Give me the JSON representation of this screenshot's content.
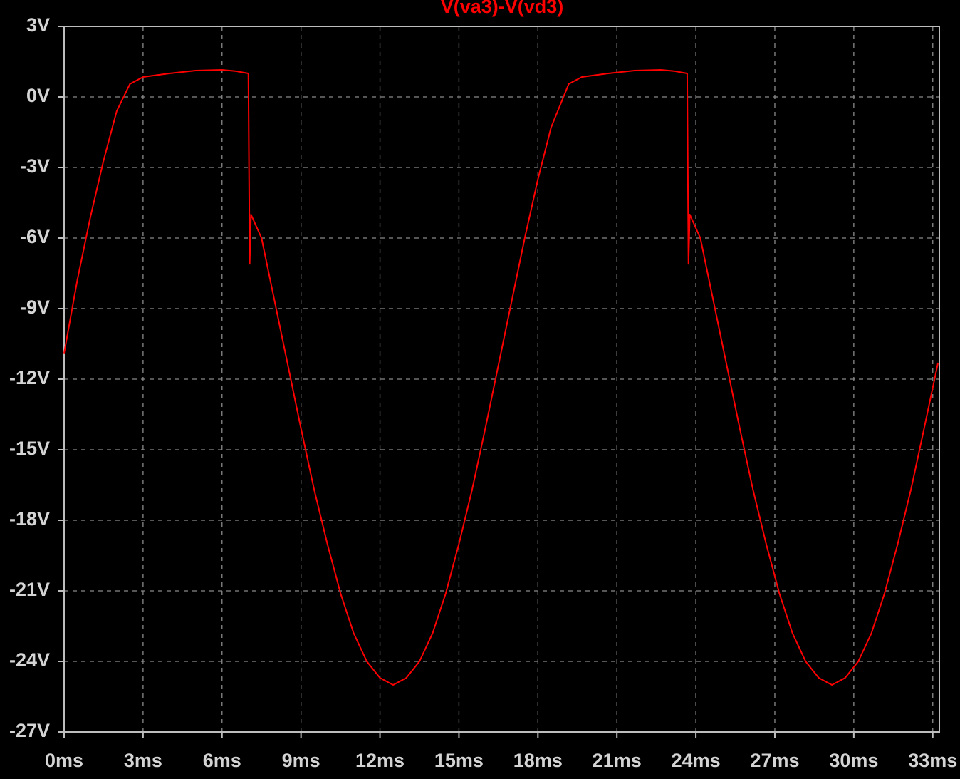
{
  "chart_data": {
    "type": "line",
    "title": "V(va3)-V(vd3)",
    "color": "#ff0000",
    "grid": true,
    "x": [
      0,
      0.5,
      1,
      1.5,
      2,
      2.5,
      3,
      4,
      5,
      6,
      6.5,
      7,
      7.05,
      7.1,
      7.5,
      8,
      8.5,
      9,
      9.5,
      10,
      10.5,
      11,
      11.5,
      12,
      12.5,
      13,
      13.5,
      14,
      14.5,
      15,
      15.5,
      16,
      16.5,
      17,
      17.5,
      18,
      18.5,
      19.17,
      19.67,
      20.67,
      21.67,
      22.67,
      23.17,
      23.67,
      23.72,
      23.77,
      24.17,
      24.67,
      25.17,
      25.67,
      26.17,
      26.67,
      27.17,
      27.67,
      28.17,
      28.67,
      29.17,
      29.67,
      30.17,
      30.67,
      31.17,
      31.67,
      32.17,
      32.67,
      33.2
    ],
    "values": [
      -10.9,
      -7.8,
      -5.1,
      -2.7,
      -0.6,
      0.55,
      0.85,
      1.0,
      1.12,
      1.15,
      1.1,
      1.0,
      -7.1,
      -5.0,
      -6.0,
      -8.7,
      -11.4,
      -14.1,
      -16.7,
      -19.0,
      -21.1,
      -22.8,
      -24.0,
      -24.7,
      -25.0,
      -24.7,
      -24.0,
      -22.8,
      -21.1,
      -19.0,
      -16.7,
      -14.1,
      -11.4,
      -8.7,
      -6.0,
      -3.5,
      -1.3,
      0.55,
      0.85,
      1.0,
      1.12,
      1.15,
      1.1,
      1.0,
      -7.1,
      -5.0,
      -6.0,
      -8.7,
      -11.4,
      -14.1,
      -16.7,
      -19.0,
      -21.1,
      -22.8,
      -24.0,
      -24.7,
      -25.0,
      -24.7,
      -24.0,
      -22.8,
      -21.1,
      -19.0,
      -16.7,
      -14.1,
      -11.3
    ],
    "xlim": [
      0,
      33.25
    ],
    "ylim": [
      -27,
      3
    ],
    "xticks": [
      {
        "value": 0,
        "label": "0ms"
      },
      {
        "value": 3,
        "label": "3ms"
      },
      {
        "value": 6,
        "label": "6ms"
      },
      {
        "value": 9,
        "label": "9ms"
      },
      {
        "value": 12,
        "label": "12ms"
      },
      {
        "value": 15,
        "label": "15ms"
      },
      {
        "value": 18,
        "label": "18ms"
      },
      {
        "value": 21,
        "label": "21ms"
      },
      {
        "value": 24,
        "label": "24ms"
      },
      {
        "value": 27,
        "label": "27ms"
      },
      {
        "value": 30,
        "label": "30ms"
      },
      {
        "value": 33,
        "label": "33ms"
      }
    ],
    "yticks": [
      {
        "value": 3,
        "label": "3V"
      },
      {
        "value": 0,
        "label": "0V"
      },
      {
        "value": -3,
        "label": "-3V"
      },
      {
        "value": -6,
        "label": "-6V"
      },
      {
        "value": -9,
        "label": "-9V"
      },
      {
        "value": -12,
        "label": "-12V"
      },
      {
        "value": -15,
        "label": "-15V"
      },
      {
        "value": -18,
        "label": "-18V"
      },
      {
        "value": -21,
        "label": "-21V"
      },
      {
        "value": -24,
        "label": "-24V"
      },
      {
        "value": -27,
        "label": "-27V"
      }
    ]
  }
}
